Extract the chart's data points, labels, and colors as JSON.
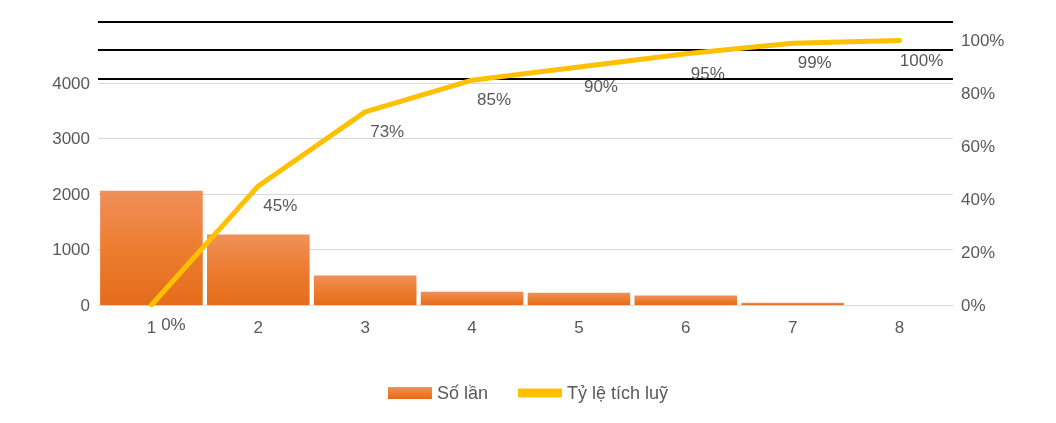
{
  "chart_data": {
    "type": "bar",
    "categories": [
      "1",
      "2",
      "3",
      "4",
      "5",
      "6",
      "7",
      "8"
    ],
    "series": [
      {
        "name": "Số lần",
        "color": "#ed7d31",
        "values": [
          2060,
          1270,
          530,
          240,
          220,
          170,
          40,
          0
        ]
      },
      {
        "name": "Tỷ lệ tích luỹ",
        "type": "line",
        "axis": "y2",
        "color": "#ffc000",
        "values": [
          0,
          45,
          73,
          85,
          90,
          95,
          99,
          100
        ],
        "value_labels": [
          "0%",
          "45%",
          "73%",
          "85%",
          "90%",
          "95%",
          "99%",
          "100%"
        ]
      }
    ],
    "ylim": [
      0,
      5100
    ],
    "yticks": [
      0,
      1000,
      2000,
      3000,
      4000
    ],
    "y2lim": [
      0,
      107
    ],
    "y2ticks": [
      {
        "value": 0,
        "label": "0%"
      },
      {
        "value": 20,
        "label": "20%"
      },
      {
        "value": 40,
        "label": "40%"
      },
      {
        "value": 60,
        "label": "60%"
      },
      {
        "value": 80,
        "label": "80%"
      },
      {
        "value": 100,
        "label": "100%"
      }
    ],
    "ref_lines": [
      {
        "axis": "y",
        "value": 4080,
        "color": "#000000"
      },
      {
        "axis": "y",
        "value": 4600,
        "color": "#000000"
      },
      {
        "axis": "y",
        "value": 5100,
        "color": "#000000"
      }
    ],
    "grid": "y",
    "legend": "bottom",
    "marker": "none",
    "line_style": "solid"
  }
}
